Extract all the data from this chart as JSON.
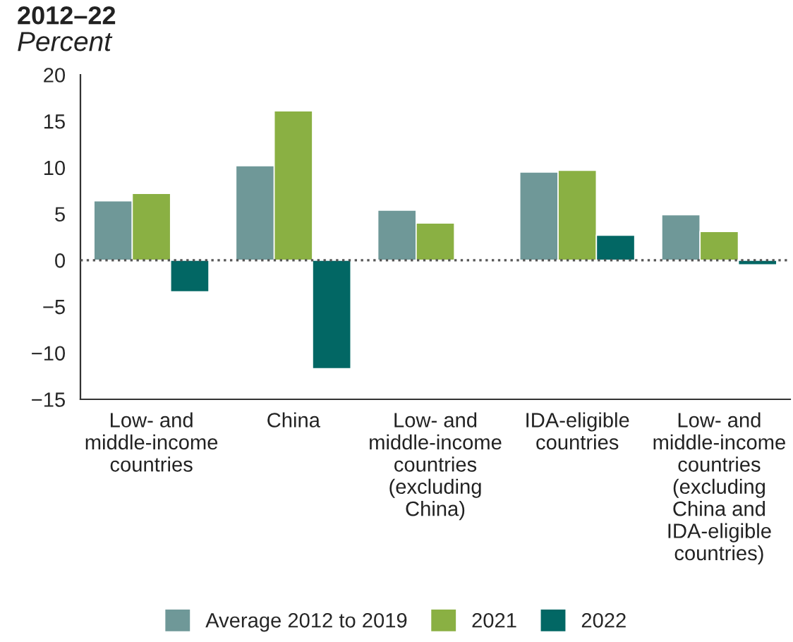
{
  "chart_data": {
    "type": "bar",
    "title": "2012–22",
    "subtitle": "Percent",
    "categories": [
      "Low- and\nmiddle-income\ncountries",
      "China",
      "Low- and\nmiddle-income\ncountries\n(excluding\nChina)",
      "IDA-eligible\ncountries",
      "Low- and\nmiddle-income\ncountries\n(excluding\nChina and\nIDA-eligible\ncountries)"
    ],
    "series": [
      {
        "name": "Average 2012 to 2019",
        "color": "#6f9898",
        "values": [
          6.4,
          10.2,
          5.4,
          9.5,
          4.9
        ]
      },
      {
        "name": "2021",
        "color": "#8ab043",
        "values": [
          7.2,
          16.1,
          4.0,
          9.7,
          3.1
        ]
      },
      {
        "name": "2022",
        "color": "#026764",
        "values": [
          -3.4,
          -11.7,
          null,
          2.7,
          -0.5
        ]
      }
    ],
    "ylim": [
      -15,
      20
    ],
    "yticks": [
      {
        "value": -15,
        "label": "−15"
      },
      {
        "value": -10,
        "label": "−10"
      },
      {
        "value": -5,
        "label": "−5"
      },
      0,
      5,
      10,
      15,
      20
    ],
    "ref_lines": [
      {
        "axis": "y",
        "value": 0,
        "color": "#555555",
        "line_style": "dotted"
      }
    ],
    "grid": false,
    "legend": "bottom"
  }
}
